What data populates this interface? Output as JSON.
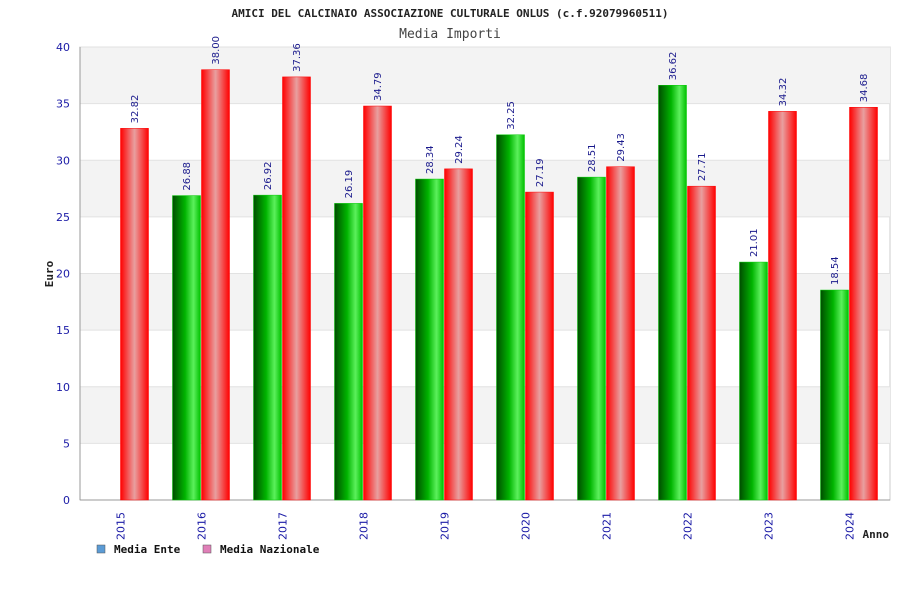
{
  "colors": {
    "ente_bar": "#00c800",
    "nazionale_bar": "#ff0000",
    "legend_ente": "#5b9bd5",
    "legend_nazionale": "#e07fb8"
  },
  "chart_data": {
    "type": "bar",
    "title": "AMICI DEL CALCINAIO ASSOCIAZIONE CULTURALE ONLUS (c.f.92079960511)",
    "subtitle": "Media Importi",
    "xlabel": "Anno",
    "ylabel": "Euro",
    "ylim": [
      0,
      40
    ],
    "yticks": [
      "0",
      "5",
      "10",
      "15",
      "20",
      "25",
      "30",
      "35",
      "40"
    ],
    "categories": [
      "2015",
      "2016",
      "2017",
      "2018",
      "2019",
      "2020",
      "2021",
      "2022",
      "2023",
      "2024"
    ],
    "series": [
      {
        "name": "Media Ente",
        "values": [
          null,
          26.88,
          26.92,
          26.19,
          28.34,
          32.25,
          28.51,
          36.62,
          21.01,
          18.54
        ],
        "labels": [
          "",
          "26.88",
          "26.92",
          "26.19",
          "28.34",
          "32.25",
          "28.51",
          "36.62",
          "21.01",
          "18.54"
        ]
      },
      {
        "name": "Media Nazionale",
        "values": [
          32.82,
          38.0,
          37.36,
          34.79,
          29.24,
          27.19,
          29.43,
          27.71,
          34.32,
          34.68
        ],
        "labels": [
          "32.82",
          "38.00",
          "37.36",
          "34.79",
          "29.24",
          "27.19",
          "29.43",
          "27.71",
          "34.32",
          "34.68"
        ]
      }
    ],
    "grid": true,
    "legend_position": "bottom-left"
  }
}
